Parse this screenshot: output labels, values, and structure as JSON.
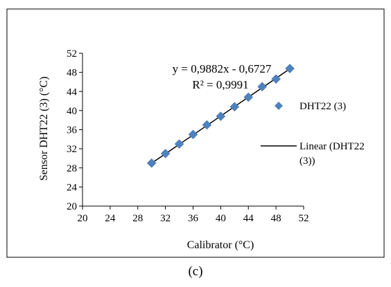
{
  "chart_data": {
    "type": "scatter",
    "title": "",
    "xlabel": "Calibrator (°C)",
    "ylabel": "Sensor DHT22 (3) (°C)",
    "xlim": [
      20,
      52
    ],
    "ylim": [
      20,
      52
    ],
    "xticks": [
      20,
      24,
      28,
      32,
      36,
      40,
      44,
      48,
      52
    ],
    "yticks": [
      20,
      24,
      28,
      32,
      36,
      40,
      44,
      48,
      52
    ],
    "grid": false,
    "legend_position": "right",
    "series": [
      {
        "name": "DHT22 (3)",
        "color": "#4F81BD",
        "marker": "diamond",
        "points": [
          {
            "x": 30,
            "y": 29
          },
          {
            "x": 32,
            "y": 31
          },
          {
            "x": 34,
            "y": 33
          },
          {
            "x": 36,
            "y": 35
          },
          {
            "x": 38,
            "y": 37
          },
          {
            "x": 40,
            "y": 38.8
          },
          {
            "x": 42,
            "y": 40.8
          },
          {
            "x": 44,
            "y": 42.8
          },
          {
            "x": 46,
            "y": 45
          },
          {
            "x": 48,
            "y": 46.6
          },
          {
            "x": 50,
            "y": 48.8
          }
        ]
      }
    ],
    "trendline": {
      "name": "Linear (DHT22 (3))",
      "name_lines": [
        "Linear (DHT22",
        "(3))"
      ],
      "color": "#000000",
      "slope": 0.9882,
      "intercept": -0.6727,
      "x_range": [
        30,
        50
      ],
      "equation": "y = 0,9882x - 0,6727",
      "r_squared": "R² = 0,9991"
    }
  },
  "caption": "(c)"
}
